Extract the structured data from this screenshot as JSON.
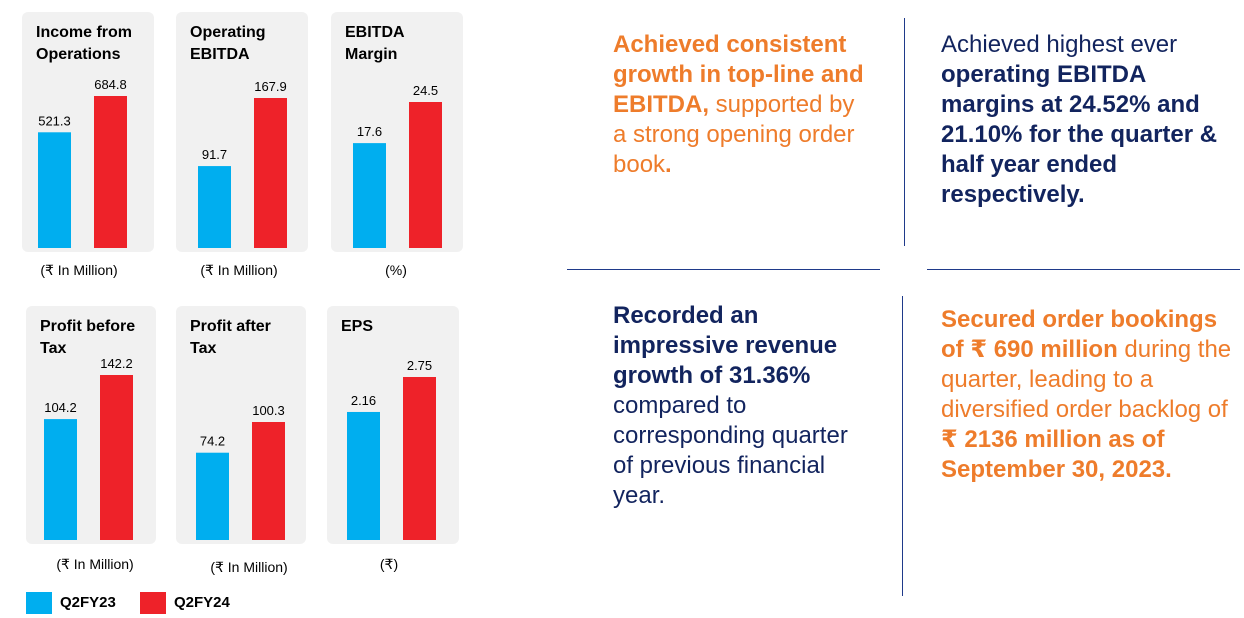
{
  "colors": {
    "q2fy23": "#00aeef",
    "q2fy24": "#ee2229",
    "orange": "#ee7c2b",
    "navy": "#12245e"
  },
  "legend": [
    {
      "label": "Q2FY23",
      "color": "#00aeef"
    },
    {
      "label": "Q2FY24",
      "color": "#ee2229"
    }
  ],
  "chart_data": [
    {
      "type": "bar",
      "title": "Income from\nOperations",
      "unit": "(₹ In Million)",
      "categories": [
        "Q2FY23",
        "Q2FY24"
      ],
      "values": [
        521.3,
        684.8
      ],
      "labels": [
        "521.3",
        "684.8"
      ]
    },
    {
      "type": "bar",
      "title": "Operating\nEBITDA",
      "unit": "(₹ In Million)",
      "categories": [
        "Q2FY23",
        "Q2FY24"
      ],
      "values": [
        91.7,
        167.9
      ],
      "labels": [
        "91.7",
        "167.9"
      ]
    },
    {
      "type": "bar",
      "title": "EBITDA\nMargin",
      "unit": "(%)",
      "categories": [
        "Q2FY23",
        "Q2FY24"
      ],
      "values": [
        17.6,
        24.5
      ],
      "labels": [
        "17.6",
        "24.5"
      ]
    },
    {
      "type": "bar",
      "title": "Profit before\nTax",
      "unit": "(₹ In Million)",
      "categories": [
        "Q2FY23",
        "Q2FY24"
      ],
      "values": [
        104.2,
        142.2
      ],
      "labels": [
        "104.2",
        "142.2"
      ]
    },
    {
      "type": "bar",
      "title": "Profit after\nTax",
      "unit": "(₹ In Million)",
      "categories": [
        "Q2FY23",
        "Q2FY24"
      ],
      "values": [
        74.2,
        100.3
      ],
      "labels": [
        "74.2",
        "100.3"
      ]
    },
    {
      "type": "bar",
      "title": "EPS",
      "unit": "(₹)",
      "categories": [
        "Q2FY23",
        "Q2FY24"
      ],
      "values": [
        2.16,
        2.75
      ],
      "labels": [
        "2.16",
        "2.75"
      ]
    }
  ],
  "highlights": {
    "growth": {
      "bold": "Achieved consistent growth in top-line and EBITDA,",
      "normal": " supported by a strong opening order book",
      "end": "."
    },
    "margins": {
      "normal": "Achieved highest ever",
      "bold": "operating EBITDA margins at 24.52% and 21.10% for the quarter & half year ended respectively."
    },
    "revenue": {
      "bold": "Recorded an impressive revenue growth of 31.36%",
      "normal": "compared to corresponding quarter of previous financial year."
    },
    "orders": {
      "bold1": "Secured order bookings of ₹ 690 million",
      "normal1": " during the quarter, leading to a diversified order backlog of ",
      "bold2": "₹ 2136 million as of September 30, 2023."
    }
  }
}
